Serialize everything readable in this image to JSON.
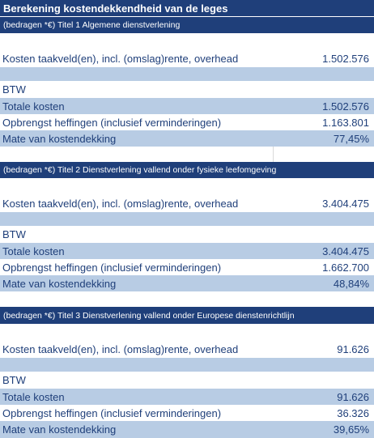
{
  "title": "Berekening kostendekkendheid van de leges",
  "sections": [
    {
      "header": "(bedragen *€) Titel 1 Algemene dienstverlening",
      "kosten_label": "Kosten taakveld(en), incl. (omslag)rente, overhead",
      "kosten_value": "1.502.576",
      "btw_label": "BTW",
      "totale_label": "Totale kosten",
      "totale_value": "1.502.576",
      "opbrengst_label": "Opbrengst heffingen (inclusief verminderingen)",
      "opbrengst_value": "1.163.801",
      "dekking_label": "Mate van kostendekking",
      "dekking_value": "77,45%"
    },
    {
      "header": "(bedragen *€) Titel 2  Dienstverlening vallend onder fysieke leefomgeving",
      "kosten_label": "Kosten taakveld(en), incl. (omslag)rente, overhead",
      "kosten_value": "3.404.475",
      "btw_label": "BTW",
      "totale_label": "Totale kosten",
      "totale_value": "3.404.475",
      "opbrengst_label": "Opbrengst heffingen (inclusief verminderingen)",
      "opbrengst_value": "1.662.700",
      "dekking_label": "Mate van kostendekking",
      "dekking_value": "48,84%"
    },
    {
      "header": "(bedragen *€) Titel 3 Dienstverlening vallend onder Europese dienstenrichtlijn",
      "kosten_label": "Kosten taakveld(en), incl. (omslag)rente, overhead",
      "kosten_value": "91.626",
      "btw_label": "BTW",
      "totale_label": "Totale kosten",
      "totale_value": "91.626",
      "opbrengst_label": "Opbrengst heffingen (inclusief verminderingen)",
      "opbrengst_value": "36.326",
      "dekking_label": "Mate van kostendekking",
      "dekking_value": "39,65%"
    }
  ],
  "colors": {
    "header_bg": "#1f3f7a",
    "shaded_bg": "#b8cce4",
    "text": "#1f3f7a"
  }
}
